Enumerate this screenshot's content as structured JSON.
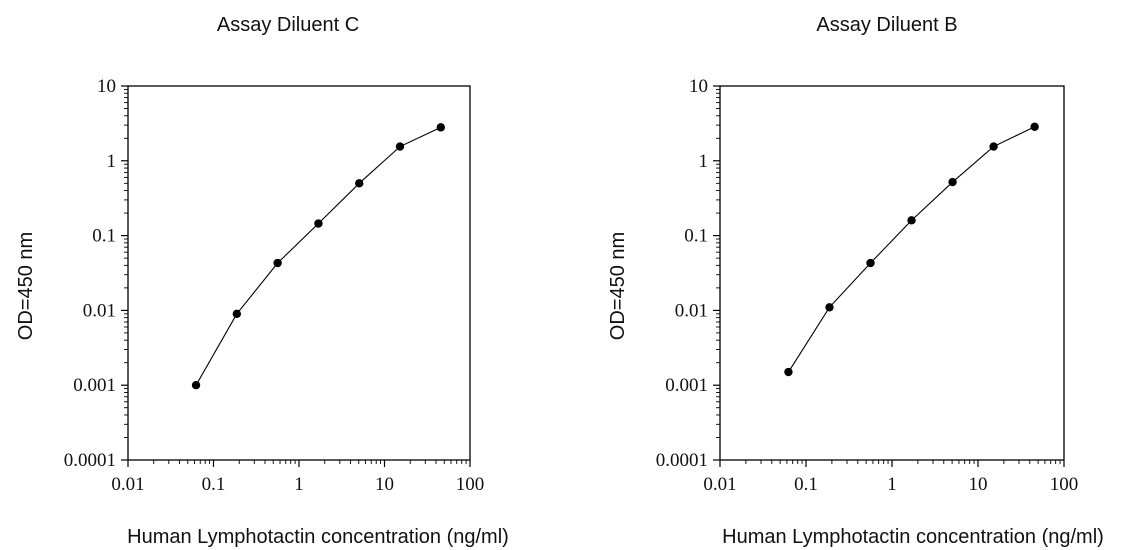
{
  "chart_data": [
    {
      "type": "scatter",
      "title": "Assay Diluent C",
      "xlabel": "Human Lymphotactin concentration (ng/ml)",
      "ylabel": "OD=450 nm",
      "xscale": "log",
      "yscale": "log",
      "xlim": [
        0.01,
        100
      ],
      "ylim": [
        0.0001,
        10
      ],
      "x_ticks": [
        "0.01",
        "0.1",
        "1",
        "10",
        "100"
      ],
      "y_ticks": [
        "0.0001",
        "0.001",
        "0.01",
        "0.1",
        "1",
        "10"
      ],
      "series": [
        {
          "x": [
            0.0625,
            0.1875,
            0.5625,
            1.6875,
            5.0625,
            15.1875,
            45.5625
          ],
          "y": [
            0.001,
            0.009,
            0.043,
            0.145,
            0.5,
            1.55,
            2.8
          ],
          "markers": true,
          "line": true,
          "color": "#000000"
        }
      ],
      "grid": false,
      "legend": "none"
    },
    {
      "type": "scatter",
      "title": "Assay Diluent B",
      "xlabel": "Human Lymphotactin concentration (ng/ml)",
      "ylabel": "OD=450 nm",
      "xscale": "log",
      "yscale": "log",
      "xlim": [
        0.01,
        100
      ],
      "ylim": [
        0.0001,
        10
      ],
      "x_ticks": [
        "0.01",
        "0.1",
        "1",
        "10",
        "100"
      ],
      "y_ticks": [
        "0.0001",
        "0.001",
        "0.01",
        "0.1",
        "1",
        "10"
      ],
      "series": [
        {
          "x": [
            0.0625,
            0.1875,
            0.5625,
            1.6875,
            5.0625,
            15.1875,
            45.5625
          ],
          "y": [
            0.0015,
            0.011,
            0.043,
            0.16,
            0.52,
            1.55,
            2.85
          ],
          "markers": true,
          "line": true,
          "color": "#000000"
        }
      ],
      "grid": false,
      "legend": "none"
    }
  ]
}
